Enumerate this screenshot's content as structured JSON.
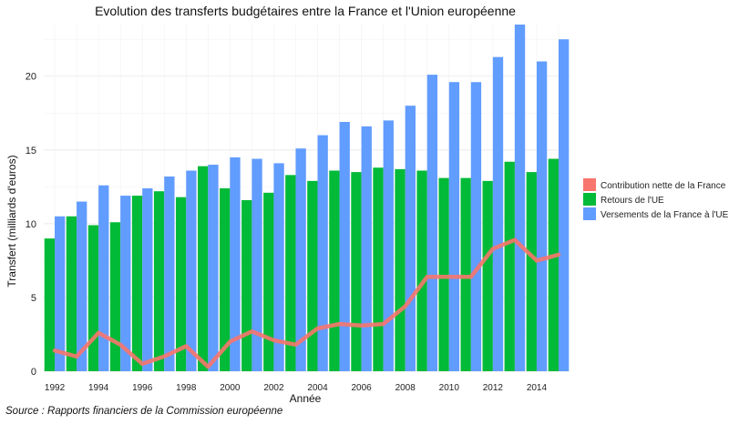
{
  "source": "Source : Rapports financiers de la Commission européenne",
  "chart_data": {
    "type": "bar",
    "title": "Evolution des transferts budgétaires entre la France et l'Union européenne",
    "xlabel": "Année",
    "ylabel": "Transfert (milliards d'euros)",
    "ylim": [
      0,
      23.5
    ],
    "yticks": [
      0,
      5,
      10,
      15,
      20
    ],
    "xticks": [
      "1992",
      "1994",
      "1996",
      "1998",
      "2000",
      "2002",
      "2004",
      "2006",
      "2008",
      "2010",
      "2012",
      "2014"
    ],
    "grid": true,
    "legend_position": "right",
    "categories": [
      "1992",
      "1993",
      "1994",
      "1995",
      "1996",
      "1997",
      "1998",
      "1999",
      "2000",
      "2001",
      "2002",
      "2003",
      "2004",
      "2005",
      "2006",
      "2007",
      "2008",
      "2009",
      "2010",
      "2011",
      "2012",
      "2013",
      "2014",
      "2015"
    ],
    "series": [
      {
        "name": "Contribution nette de la France",
        "type": "line",
        "color": "#F8766D",
        "values": [
          1.4,
          1.0,
          2.6,
          1.8,
          0.5,
          1.0,
          1.7,
          0.3,
          2.0,
          2.7,
          2.1,
          1.8,
          2.9,
          3.2,
          3.1,
          3.2,
          4.4,
          6.4,
          6.4,
          6.4,
          8.3,
          8.9,
          7.5,
          7.9
        ]
      },
      {
        "name": "Retours de l'UE",
        "type": "bar",
        "color": "#00BA38",
        "values": [
          9.0,
          10.5,
          9.9,
          10.1,
          11.9,
          12.2,
          11.8,
          13.9,
          12.4,
          11.6,
          12.1,
          13.3,
          12.9,
          13.6,
          13.5,
          13.8,
          13.7,
          13.6,
          13.1,
          13.1,
          12.9,
          14.2,
          13.5,
          14.4
        ]
      },
      {
        "name": "Versements de la France à l'UE",
        "type": "bar",
        "color": "#619CFF",
        "values": [
          10.5,
          11.5,
          12.6,
          11.9,
          12.4,
          13.2,
          13.6,
          14.0,
          14.5,
          14.4,
          14.1,
          15.1,
          16.0,
          16.9,
          16.6,
          17.0,
          18.0,
          20.1,
          19.6,
          19.6,
          21.3,
          23.5,
          21.0,
          22.5
        ]
      }
    ]
  }
}
